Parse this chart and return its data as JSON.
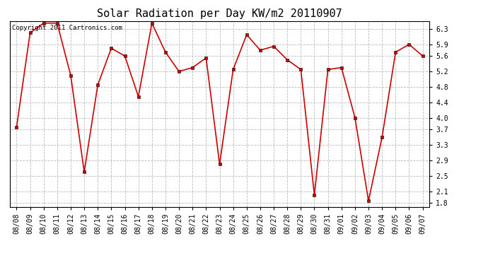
{
  "title": "Solar Radiation per Day KW/m2 20110907",
  "copyright_text": "Copyright 2011 Cartronics.com",
  "dates": [
    "08/08",
    "08/09",
    "08/10",
    "08/11",
    "08/12",
    "08/13",
    "08/14",
    "08/15",
    "08/16",
    "08/17",
    "08/18",
    "08/19",
    "08/20",
    "08/21",
    "08/22",
    "08/23",
    "08/24",
    "08/25",
    "08/26",
    "08/27",
    "08/28",
    "08/29",
    "08/30",
    "08/31",
    "09/01",
    "09/02",
    "09/03",
    "09/04",
    "09/05",
    "09/06",
    "09/07"
  ],
  "values": [
    3.75,
    6.2,
    6.45,
    6.45,
    5.1,
    2.6,
    4.85,
    5.8,
    5.6,
    4.55,
    6.45,
    5.7,
    5.2,
    5.3,
    5.55,
    2.8,
    5.25,
    6.15,
    5.75,
    5.85,
    5.5,
    5.25,
    2.0,
    5.25,
    5.3,
    4.0,
    1.85,
    3.5,
    5.7,
    5.9,
    5.6
  ],
  "ylim": [
    1.7,
    6.5
  ],
  "yticks": [
    1.8,
    2.1,
    2.5,
    2.9,
    3.3,
    3.7,
    4.0,
    4.4,
    4.8,
    5.2,
    5.6,
    5.9,
    6.3
  ],
  "line_color": "#cc0000",
  "marker": "s",
  "marker_size": 2.5,
  "line_width": 1.2,
  "bg_color": "#ffffff",
  "grid_color": "#bbbbbb",
  "title_fontsize": 11,
  "tick_fontsize": 7,
  "copyright_fontsize": 6.5
}
